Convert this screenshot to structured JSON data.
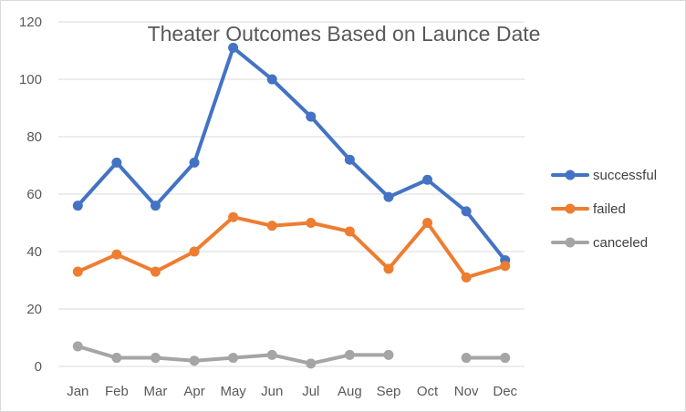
{
  "chart_data": {
    "type": "line",
    "title": "Theater Outcomes Based on Launce Date",
    "xlabel": "",
    "ylabel": "",
    "categories": [
      "Jan",
      "Feb",
      "Mar",
      "Apr",
      "May",
      "Jun",
      "Jul",
      "Aug",
      "Sep",
      "Oct",
      "Nov",
      "Dec"
    ],
    "ylim": [
      0,
      120
    ],
    "yticks": [
      0,
      20,
      40,
      60,
      80,
      100,
      120
    ],
    "grid": true,
    "legend": "right",
    "series": [
      {
        "name": "successful",
        "color": "#4472C4",
        "values": [
          56,
          71,
          56,
          71,
          111,
          100,
          87,
          72,
          59,
          65,
          54,
          37
        ]
      },
      {
        "name": "failed",
        "color": "#ED7D31",
        "values": [
          33,
          39,
          33,
          40,
          52,
          49,
          50,
          47,
          34,
          50,
          31,
          35
        ]
      },
      {
        "name": "canceled",
        "color": "#A5A5A5",
        "values": [
          7,
          3,
          3,
          2,
          3,
          4,
          1,
          4,
          4,
          null,
          3,
          3
        ]
      }
    ]
  }
}
